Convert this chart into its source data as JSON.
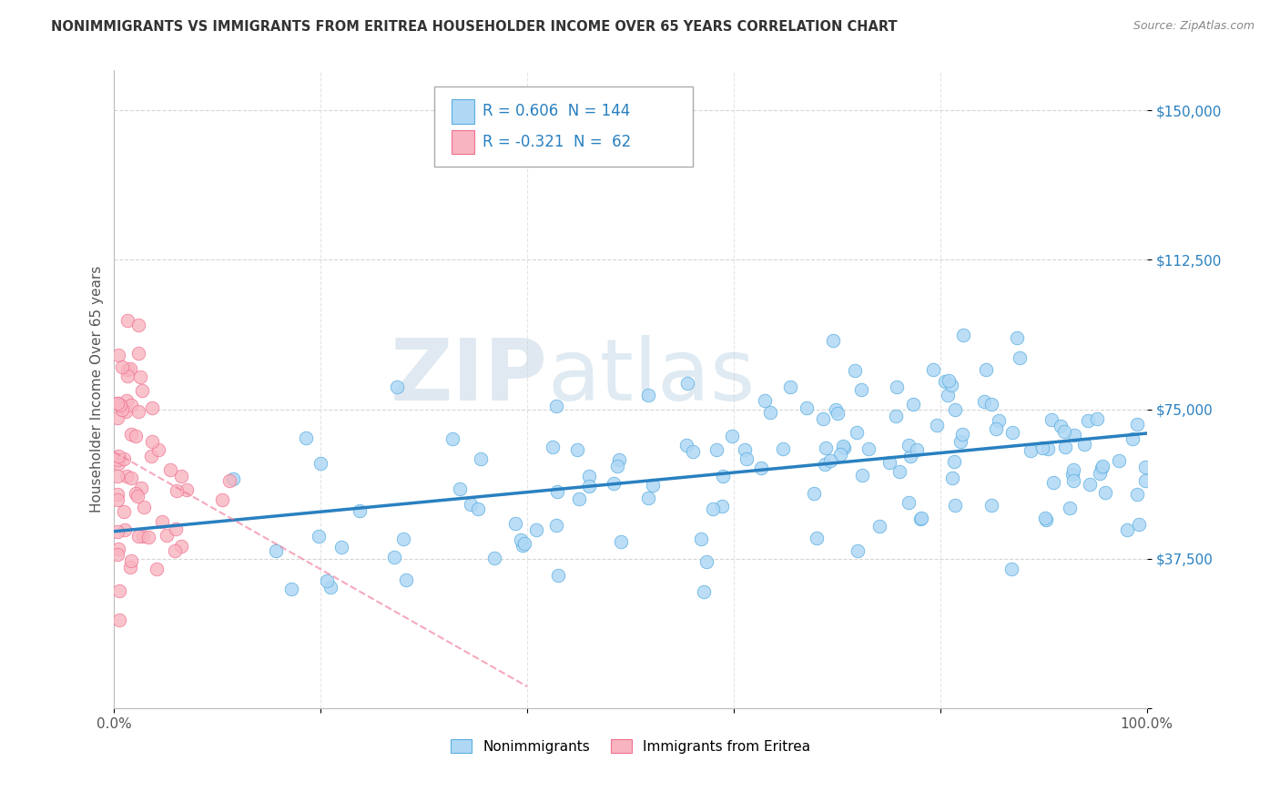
{
  "title": "NONIMMIGRANTS VS IMMIGRANTS FROM ERITREA HOUSEHOLDER INCOME OVER 65 YEARS CORRELATION CHART",
  "source": "Source: ZipAtlas.com",
  "ylabel": "Householder Income Over 65 years",
  "xlim": [
    0,
    100
  ],
  "ylim": [
    0,
    160000
  ],
  "yticks": [
    0,
    37500,
    75000,
    112500,
    150000
  ],
  "ytick_labels": [
    "",
    "$37,500",
    "$75,000",
    "$112,500",
    "$150,000"
  ],
  "legend_label1": "Nonimmigrants",
  "legend_label2": "Immigrants from Eritrea",
  "R1": 0.606,
  "N1": 144,
  "R2": -0.321,
  "N2": 62,
  "color1": "#afd8f5",
  "color2": "#f8b4c0",
  "edge_color1": "#5aaee0",
  "edge_color2": "#f07090",
  "line_color1": "#2980c0",
  "line_color2": "#e05070",
  "watermark_zip": "ZIP",
  "watermark_atlas": "atlas",
  "background_color": "#ffffff",
  "grid_color": "#cccccc",
  "title_color": "#333333",
  "axis_label_color": "#555555",
  "tick_color_y": "#2980c0",
  "source_color": "#888888"
}
